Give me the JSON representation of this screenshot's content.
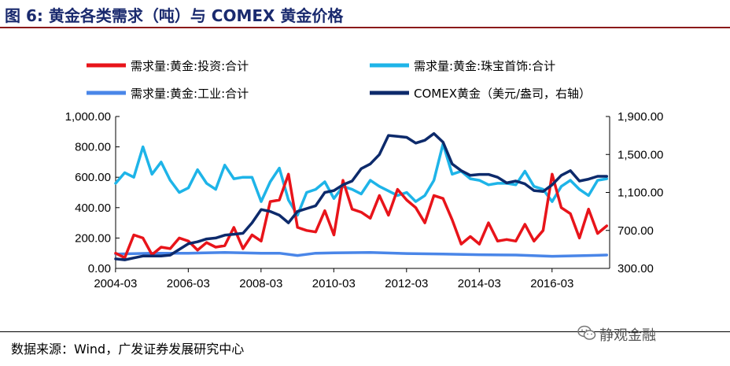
{
  "header": {
    "title": "图 6:  黄金各类需求（吨）与 COMEX 黄金价格"
  },
  "footer": {
    "source": "数据来源：Wind，广发证券发展研究中心",
    "watermark": "静观金融"
  },
  "colors": {
    "title": "#1a2a6e",
    "rule": "#8b1a1a",
    "investment": "#e8141a",
    "jewelry": "#1eb4e8",
    "industrial": "#4a86e8",
    "comex": "#0d2a6b"
  },
  "chart_data": {
    "type": "line",
    "title": "",
    "xlabel": "",
    "ylabel": "",
    "x_ticks": [
      "2004-03",
      "2006-03",
      "2008-03",
      "2010-03",
      "2012-03",
      "2014-03",
      "2016-03"
    ],
    "y_left_ticks": [
      "0.00",
      "200.00",
      "400.00",
      "600.00",
      "800.00",
      "1,000.00"
    ],
    "y_right_ticks": [
      "300.00",
      "700.00",
      "1,100.00",
      "1,500.00",
      "1,900.00"
    ],
    "y_left_lim": [
      0,
      1000
    ],
    "y_right_lim": [
      300,
      1900
    ],
    "x_lim": [
      2004.17,
      2017.75
    ],
    "legend_position": "top",
    "series": [
      {
        "name": "需求量:黄金:投资:合计",
        "axis": "left",
        "color": "#e8141a",
        "x": [
          2004.17,
          2004.42,
          2004.67,
          2004.92,
          2005.17,
          2005.42,
          2005.67,
          2005.92,
          2006.17,
          2006.42,
          2006.67,
          2006.92,
          2007.17,
          2007.42,
          2007.67,
          2007.92,
          2008.17,
          2008.42,
          2008.67,
          2008.92,
          2009.17,
          2009.42,
          2009.67,
          2009.92,
          2010.17,
          2010.42,
          2010.67,
          2010.92,
          2011.17,
          2011.42,
          2011.67,
          2011.92,
          2012.17,
          2012.42,
          2012.67,
          2012.92,
          2013.17,
          2013.42,
          2013.67,
          2013.92,
          2014.17,
          2014.42,
          2014.67,
          2014.92,
          2015.17,
          2015.42,
          2015.67,
          2015.92,
          2016.17,
          2016.42,
          2016.67,
          2016.92,
          2017.17,
          2017.42,
          2017.67
        ],
        "values": [
          100,
          70,
          220,
          200,
          90,
          140,
          130,
          200,
          180,
          120,
          170,
          140,
          150,
          270,
          130,
          220,
          180,
          440,
          450,
          620,
          270,
          250,
          240,
          380,
          220,
          580,
          390,
          370,
          330,
          480,
          350,
          520,
          450,
          400,
          300,
          480,
          460,
          320,
          160,
          210,
          160,
          300,
          180,
          190,
          180,
          290,
          180,
          250,
          620,
          400,
          360,
          200,
          390,
          230,
          280
        ]
      },
      {
        "name": "需求量:黄金:珠宝首饰:合计",
        "axis": "left",
        "color": "#1eb4e8",
        "x": [
          2004.17,
          2004.42,
          2004.67,
          2004.92,
          2005.17,
          2005.42,
          2005.67,
          2005.92,
          2006.17,
          2006.42,
          2006.67,
          2006.92,
          2007.17,
          2007.42,
          2007.67,
          2007.92,
          2008.17,
          2008.42,
          2008.67,
          2008.92,
          2009.17,
          2009.42,
          2009.67,
          2009.92,
          2010.17,
          2010.42,
          2010.67,
          2010.92,
          2011.17,
          2011.42,
          2011.67,
          2011.92,
          2012.17,
          2012.42,
          2012.67,
          2012.92,
          2013.17,
          2013.42,
          2013.67,
          2013.92,
          2014.17,
          2014.42,
          2014.67,
          2014.92,
          2015.17,
          2015.42,
          2015.67,
          2015.92,
          2016.17,
          2016.42,
          2016.67,
          2016.92,
          2017.17,
          2017.42,
          2017.67
        ],
        "values": [
          560,
          630,
          600,
          800,
          620,
          700,
          580,
          500,
          530,
          650,
          560,
          520,
          680,
          590,
          600,
          600,
          440,
          570,
          660,
          450,
          350,
          500,
          520,
          570,
          460,
          540,
          520,
          490,
          580,
          540,
          510,
          480,
          500,
          440,
          480,
          580,
          820,
          620,
          640,
          590,
          580,
          550,
          560,
          560,
          550,
          640,
          540,
          520,
          440,
          540,
          580,
          520,
          480,
          580,
          590
        ]
      },
      {
        "name": "需求量:黄金:工业:合计",
        "axis": "left",
        "color": "#4a86e8",
        "x": [
          2004.17,
          2005.17,
          2006.17,
          2007.17,
          2008.17,
          2008.67,
          2009.17,
          2009.67,
          2010.17,
          2011.17,
          2012.17,
          2013.17,
          2014.17,
          2015.17,
          2016.17,
          2017.17,
          2017.67
        ],
        "values": [
          95,
          100,
          100,
          105,
          100,
          100,
          85,
          100,
          102,
          105,
          98,
          95,
          90,
          88,
          80,
          85,
          88
        ]
      },
      {
        "name": "COMEX黄金（美元/盎司，右轴）",
        "axis": "right",
        "color": "#0d2a6b",
        "x": [
          2004.17,
          2004.42,
          2004.67,
          2004.92,
          2005.17,
          2005.42,
          2005.67,
          2005.92,
          2006.17,
          2006.42,
          2006.67,
          2006.92,
          2007.17,
          2007.42,
          2007.67,
          2007.92,
          2008.17,
          2008.42,
          2008.67,
          2008.92,
          2009.17,
          2009.42,
          2009.67,
          2009.92,
          2010.17,
          2010.42,
          2010.67,
          2010.92,
          2011.17,
          2011.42,
          2011.67,
          2011.92,
          2012.17,
          2012.42,
          2012.67,
          2012.92,
          2013.17,
          2013.42,
          2013.67,
          2013.92,
          2014.17,
          2014.42,
          2014.67,
          2014.92,
          2015.17,
          2015.42,
          2015.67,
          2015.92,
          2016.17,
          2016.42,
          2016.67,
          2016.92,
          2017.17,
          2017.42,
          2017.67
        ],
        "values": [
          400,
          390,
          410,
          430,
          430,
          430,
          440,
          500,
          560,
          580,
          610,
          620,
          650,
          660,
          670,
          780,
          920,
          900,
          860,
          780,
          900,
          930,
          960,
          1100,
          1120,
          1180,
          1220,
          1350,
          1400,
          1500,
          1700,
          1690,
          1680,
          1620,
          1650,
          1720,
          1630,
          1400,
          1330,
          1280,
          1290,
          1290,
          1260,
          1200,
          1220,
          1190,
          1120,
          1110,
          1180,
          1280,
          1330,
          1220,
          1240,
          1270,
          1270
        ]
      }
    ]
  }
}
